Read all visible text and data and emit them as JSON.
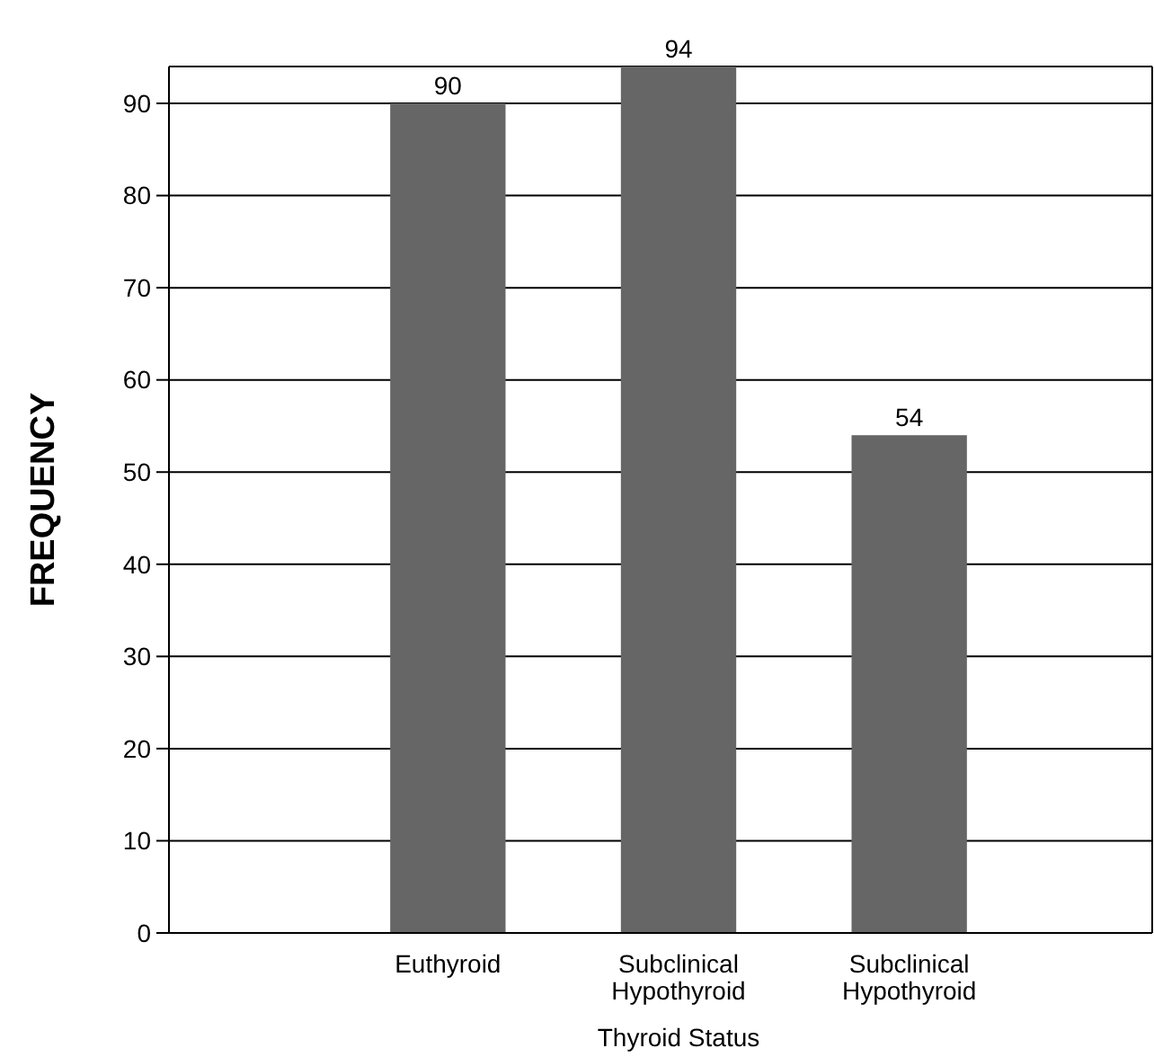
{
  "chart_data": {
    "type": "bar",
    "xlabel": "Thyroid Status",
    "ylabel": "FREQUENCY",
    "categories": [
      "Euthyroid",
      "Subclinical Hypothyroid",
      "Subclinical Hypothyroid"
    ],
    "values": [
      90,
      94,
      54
    ],
    "color": "#666666",
    "ylim": [
      0,
      94
    ],
    "yticks": [
      0,
      10,
      20,
      30,
      40,
      50,
      60,
      70,
      80,
      90
    ],
    "grid": "y",
    "data_labels": true
  }
}
